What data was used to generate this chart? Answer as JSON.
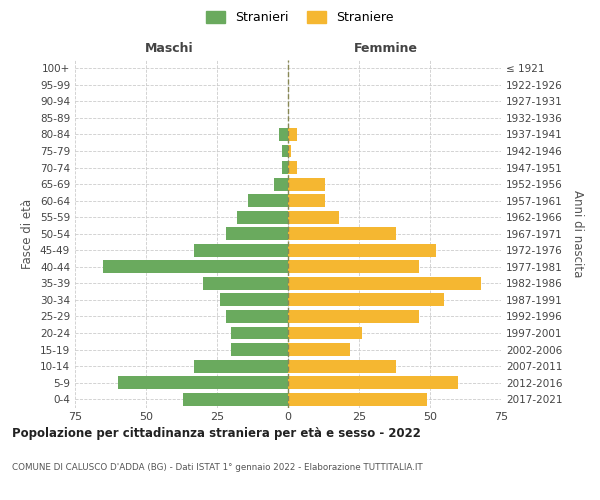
{
  "age_groups": [
    "0-4",
    "5-9",
    "10-14",
    "15-19",
    "20-24",
    "25-29",
    "30-34",
    "35-39",
    "40-44",
    "45-49",
    "50-54",
    "55-59",
    "60-64",
    "65-69",
    "70-74",
    "75-79",
    "80-84",
    "85-89",
    "90-94",
    "95-99",
    "100+"
  ],
  "birth_years": [
    "2017-2021",
    "2012-2016",
    "2007-2011",
    "2002-2006",
    "1997-2001",
    "1992-1996",
    "1987-1991",
    "1982-1986",
    "1977-1981",
    "1972-1976",
    "1967-1971",
    "1962-1966",
    "1957-1961",
    "1952-1956",
    "1947-1951",
    "1942-1946",
    "1937-1941",
    "1932-1936",
    "1927-1931",
    "1922-1926",
    "≤ 1921"
  ],
  "males": [
    37,
    60,
    33,
    20,
    20,
    22,
    24,
    30,
    65,
    33,
    22,
    18,
    14,
    5,
    2,
    2,
    3,
    0,
    0,
    0,
    0
  ],
  "females": [
    49,
    60,
    38,
    22,
    26,
    46,
    55,
    68,
    46,
    52,
    38,
    18,
    13,
    13,
    3,
    1,
    3,
    0,
    0,
    0,
    0
  ],
  "male_color": "#6aaa5e",
  "female_color": "#f5b731",
  "center_line_color": "#888855",
  "grid_color": "#cccccc",
  "bg_color": "#ffffff",
  "title": "Popolazione per cittadinanza straniera per età e sesso - 2022",
  "subtitle": "COMUNE DI CALUSCO D'ADDA (BG) - Dati ISTAT 1° gennaio 2022 - Elaborazione TUTTITALIA.IT",
  "ylabel_left": "Fasce di età",
  "ylabel_right": "Anni di nascita",
  "xlabel_left": "Maschi",
  "xlabel_right": "Femmine",
  "legend_male": "Stranieri",
  "legend_female": "Straniere",
  "xlim": 75
}
